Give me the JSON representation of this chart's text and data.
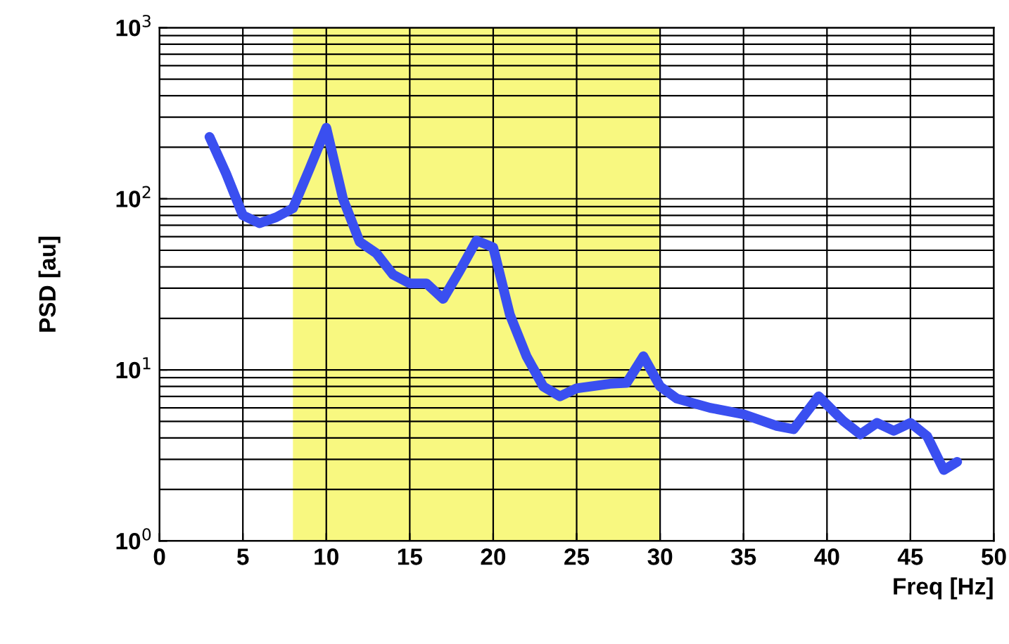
{
  "chart_data": {
    "type": "line",
    "xlabel": "Freq [Hz]",
    "ylabel": "PSD [au]",
    "log": "y",
    "grid": true,
    "line_style": "solid",
    "marker": "none",
    "xlim": [
      0,
      50
    ],
    "xticks": [
      0,
      5,
      10,
      15,
      20,
      25,
      30,
      35,
      40,
      45,
      50
    ],
    "ylim": [
      1,
      1000
    ],
    "yticks": [
      {
        "value": 1,
        "label": "10$^{0}$"
      },
      {
        "value": 10,
        "label": "10$^{1}$"
      },
      {
        "value": 100,
        "label": "10$^{2}$"
      },
      {
        "value": 1000,
        "label": "10$^{3}$"
      }
    ],
    "bands": [
      {
        "axis": "x",
        "from": 8,
        "to": 30,
        "color": "#f8f880"
      }
    ],
    "series": [
      {
        "color": "#3a4ff0",
        "x": [
          3,
          4,
          5,
          6,
          7,
          8,
          9,
          10,
          11,
          12,
          13,
          14,
          15,
          16,
          17,
          18,
          19,
          20,
          21,
          22,
          23,
          24,
          25,
          27,
          28,
          29,
          30,
          31,
          33,
          35,
          37,
          38,
          39.5,
          41,
          42,
          43,
          44,
          45,
          46,
          47,
          47.8
        ],
        "values": [
          230,
          140,
          80,
          72,
          78,
          88,
          150,
          260,
          100,
          56,
          48,
          36,
          32,
          32,
          26,
          38,
          57,
          52,
          21,
          12,
          8,
          7,
          7.8,
          8.3,
          8.4,
          12,
          8,
          6.8,
          6,
          5.5,
          4.7,
          4.5,
          7,
          5,
          4.2,
          4.9,
          4.4,
          4.9,
          4.1,
          2.6,
          2.9
        ]
      }
    ]
  }
}
